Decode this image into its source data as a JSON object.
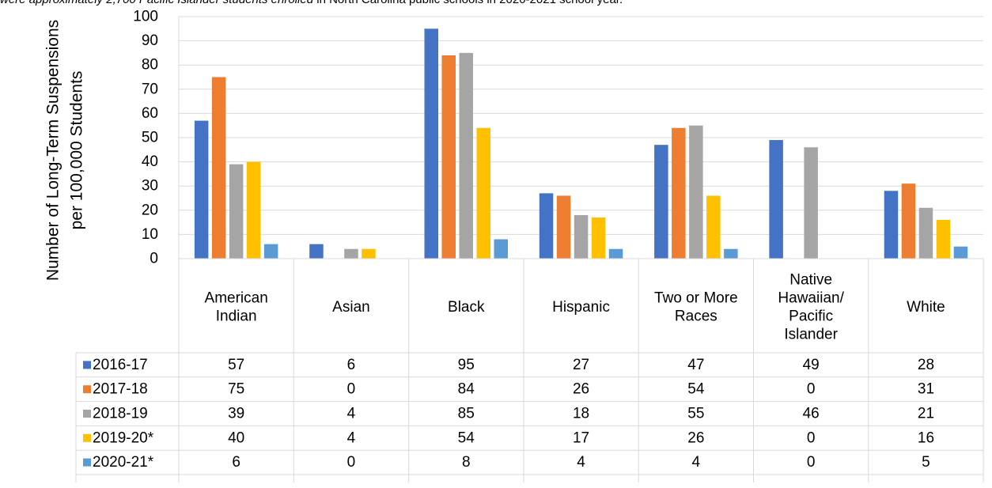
{
  "note": {
    "italic_part": "were approximately 2,700 Pacific Islander students enrolled",
    "plain_part": " in North Carolina public schools in 2020-2021 school year."
  },
  "chart_data": {
    "type": "bar",
    "ylabel": [
      "Number of Long-Term Suspensions",
      "per 100,000 Students"
    ],
    "ylim": [
      0,
      100
    ],
    "yticks": [
      0,
      10,
      20,
      30,
      40,
      50,
      60,
      70,
      80,
      90,
      100
    ],
    "grid": true,
    "categories": [
      [
        "American",
        "Indian"
      ],
      [
        "Asian"
      ],
      [
        "Black"
      ],
      [
        "Hispanic"
      ],
      [
        "Two or More",
        "Races"
      ],
      [
        "Native",
        "Hawaiian/",
        "Pacific",
        "Islander"
      ],
      [
        "White"
      ]
    ],
    "series": [
      {
        "name": "2016-17",
        "color": "#4472C4",
        "values": [
          57,
          6,
          95,
          27,
          47,
          49,
          28
        ]
      },
      {
        "name": "2017-18",
        "color": "#ED7D31",
        "values": [
          75,
          0,
          84,
          26,
          54,
          0,
          31
        ]
      },
      {
        "name": "2018-19",
        "color": "#A5A5A5",
        "values": [
          39,
          4,
          85,
          18,
          55,
          46,
          21
        ]
      },
      {
        "name": "2019-20*",
        "color": "#FFC000",
        "values": [
          40,
          4,
          54,
          17,
          26,
          0,
          16
        ]
      },
      {
        "name": "2020-21*",
        "color": "#5B9BD5",
        "values": [
          6,
          0,
          8,
          4,
          4,
          0,
          5
        ]
      }
    ]
  }
}
